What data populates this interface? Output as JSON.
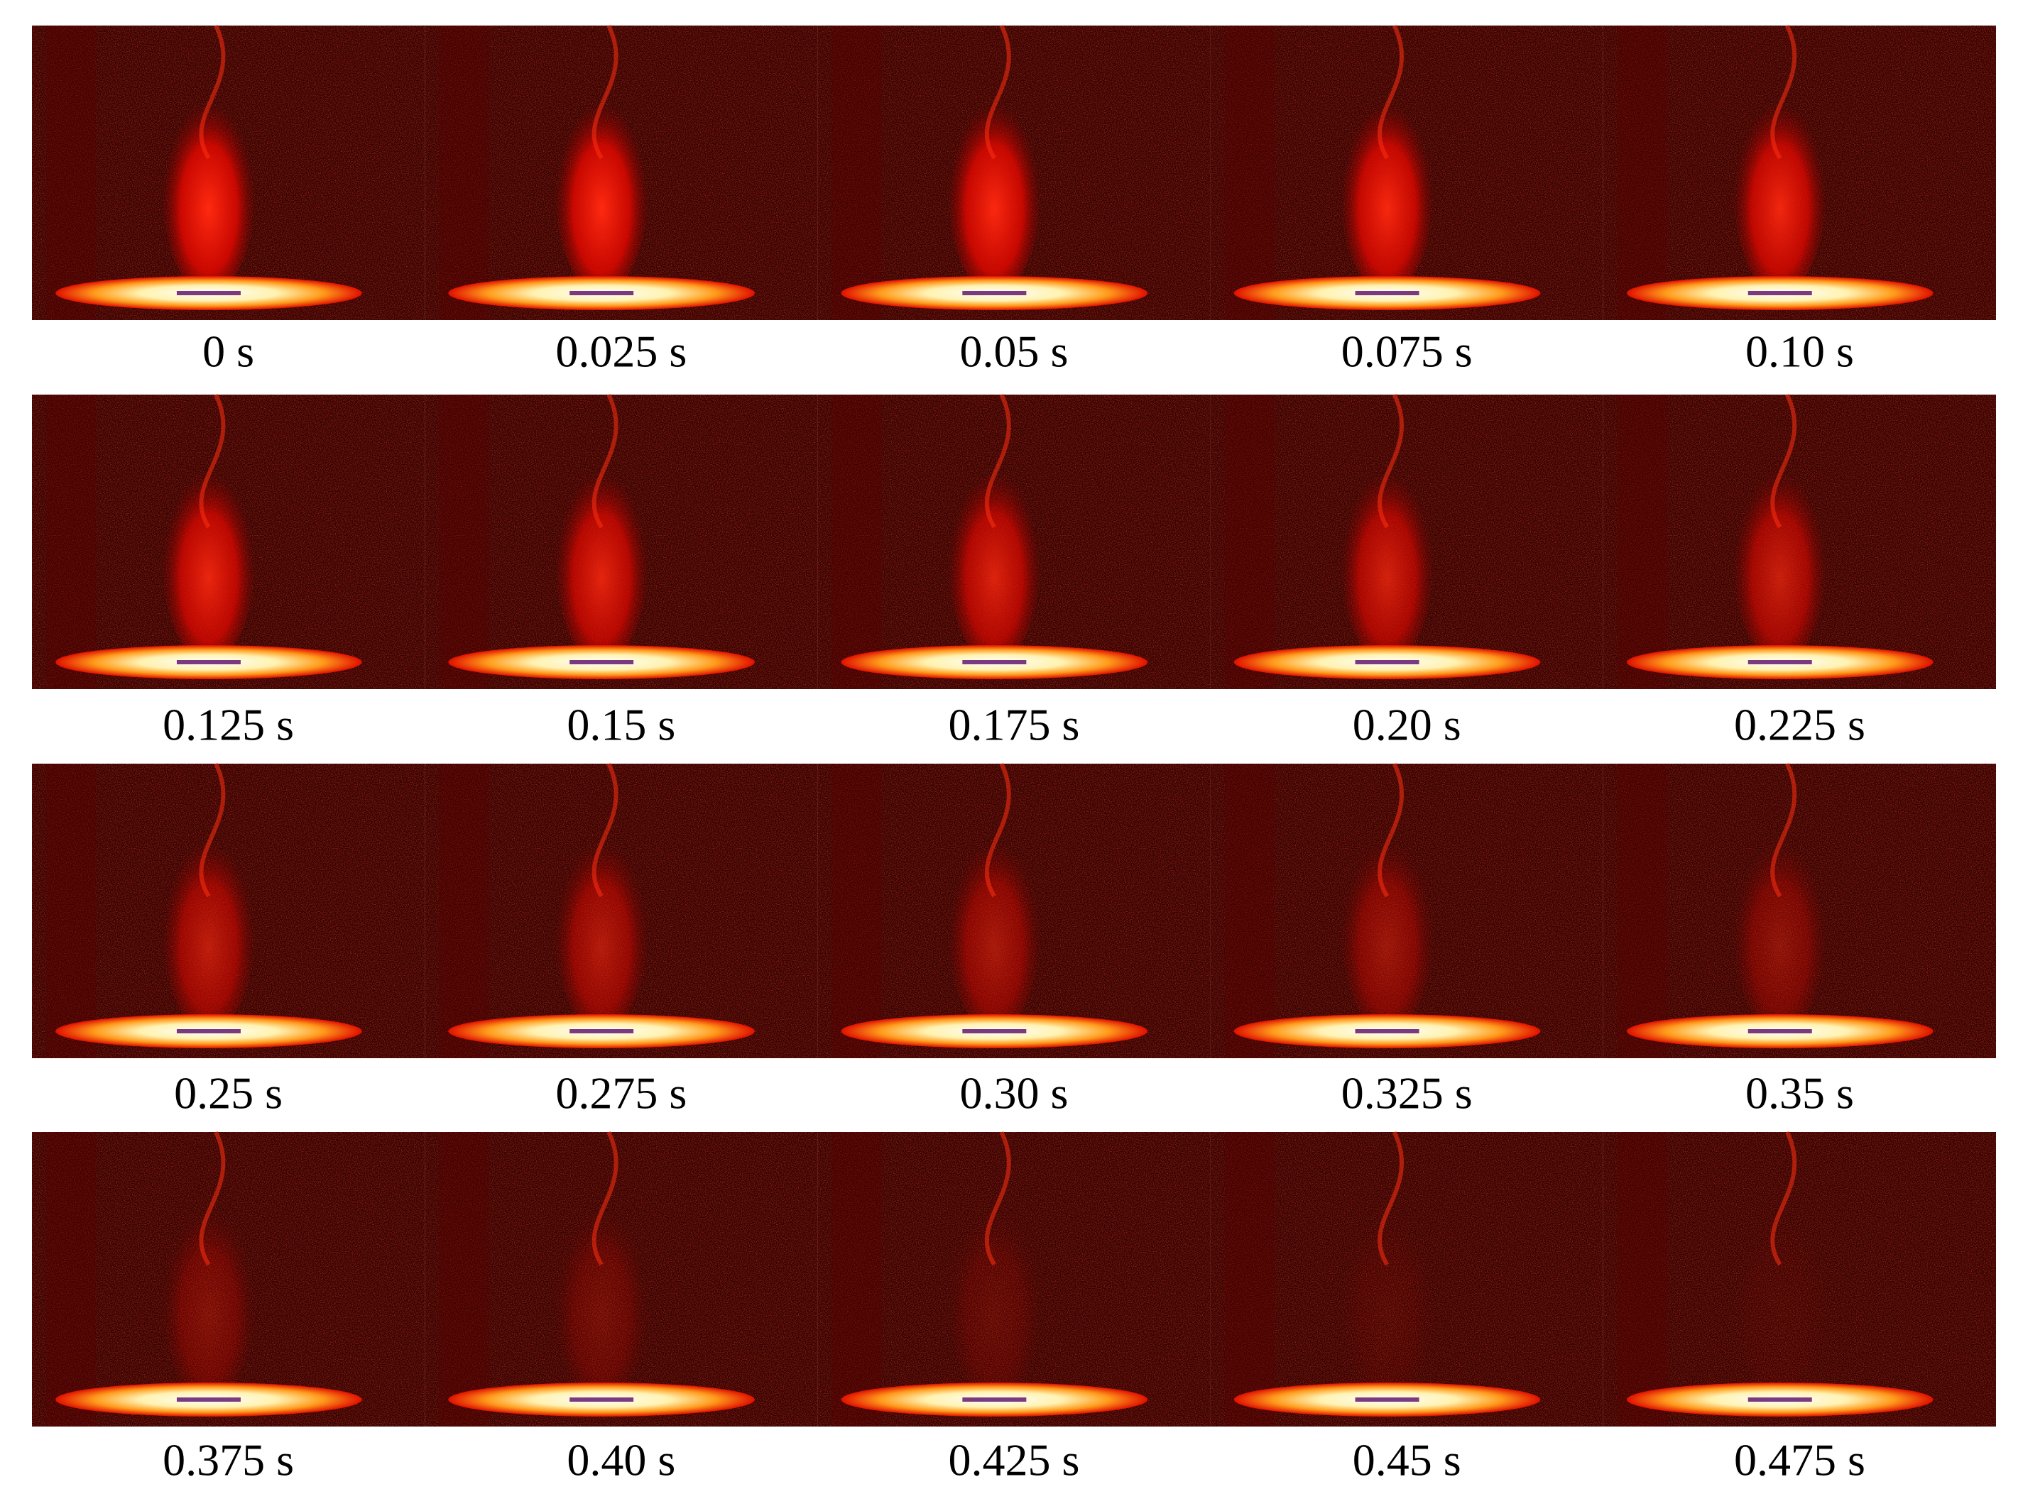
{
  "frames": [
    {
      "label": "0 s"
    },
    {
      "label": "0.025 s"
    },
    {
      "label": "0.05 s"
    },
    {
      "label": "0.075 s"
    },
    {
      "label": "0.10 s"
    },
    {
      "label": "0.125 s"
    },
    {
      "label": "0.15 s"
    },
    {
      "label": "0.175 s"
    },
    {
      "label": "0.20 s"
    },
    {
      "label": "0.225 s"
    },
    {
      "label": "0.25 s"
    },
    {
      "label": "0.275 s"
    },
    {
      "label": "0.30 s"
    },
    {
      "label": "0.325 s"
    },
    {
      "label": "0.35 s"
    },
    {
      "label": "0.375 s"
    },
    {
      "label": "0.40 s"
    },
    {
      "label": "0.425 s"
    },
    {
      "label": "0.45 s"
    },
    {
      "label": "0.475 s"
    }
  ]
}
